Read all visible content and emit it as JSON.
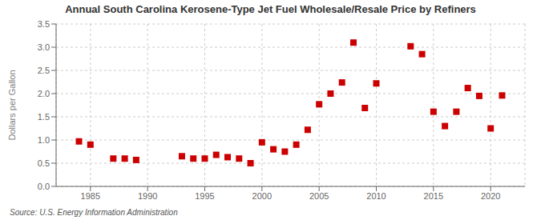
{
  "chart_data": {
    "type": "scatter",
    "title": "Annual South Carolina Kerosene-Type Jet Fuel Wholesale/Resale Price by Refiners",
    "ylabel": "Dollars per Gallon",
    "source": "Source: U.S. Energy Information Administration",
    "x": [
      1984,
      1985,
      1987,
      1988,
      1989,
      1993,
      1994,
      1995,
      1996,
      1997,
      1998,
      1999,
      2000,
      2001,
      2002,
      2003,
      2004,
      2005,
      2006,
      2007,
      2008,
      2009,
      2010,
      2013,
      2014,
      2015,
      2016,
      2017,
      2018,
      2019,
      2020,
      2021
    ],
    "values": [
      0.97,
      0.9,
      0.6,
      0.6,
      0.57,
      0.65,
      0.6,
      0.6,
      0.68,
      0.63,
      0.6,
      0.5,
      0.95,
      0.8,
      0.75,
      0.9,
      1.22,
      1.77,
      2.0,
      2.24,
      3.1,
      1.69,
      2.22,
      3.02,
      2.85,
      1.61,
      1.3,
      1.61,
      2.12,
      1.95,
      1.25,
      1.96
    ],
    "color": "#cc0000",
    "marker": "square",
    "xlim": [
      1982,
      2023
    ],
    "ylim": [
      0.0,
      3.5
    ],
    "xticks": [
      1985,
      1990,
      1995,
      2000,
      2005,
      2010,
      2015,
      2020
    ],
    "yticks": [
      {
        "value": 0.0,
        "label": "0.0"
      },
      0.5,
      {
        "value": 1.0,
        "label": "1.0"
      },
      1.5,
      {
        "value": 2.0,
        "label": "2.0"
      },
      2.5,
      {
        "value": 3.0,
        "label": "3.0"
      },
      3.5
    ],
    "grid": true
  }
}
